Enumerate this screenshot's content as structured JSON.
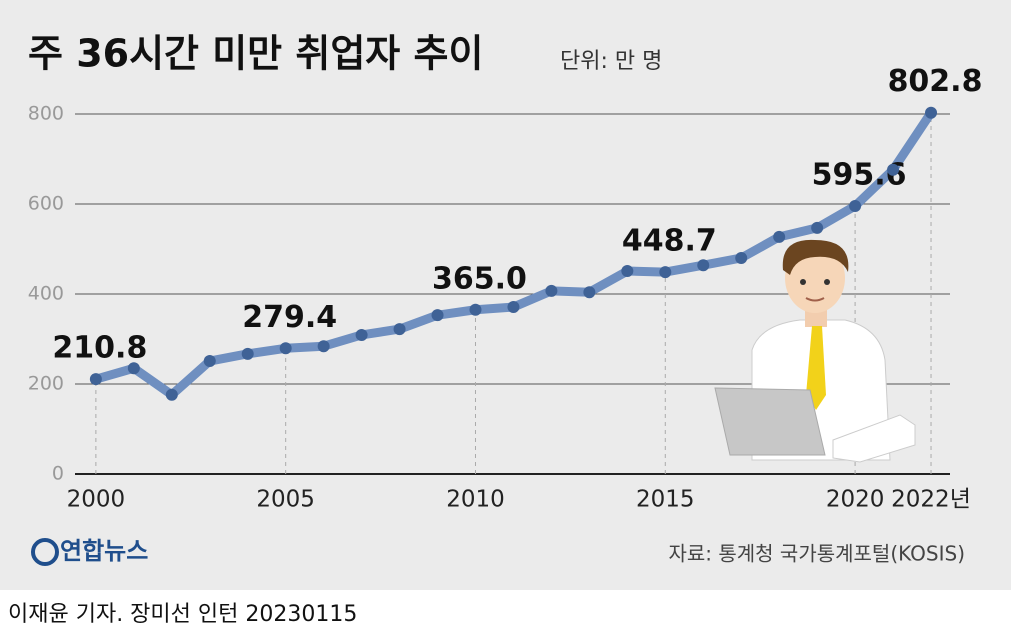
{
  "chart_data": {
    "type": "line",
    "title": "주 36시간 미만 취업자 추이",
    "subtitle": "단위: 만 명",
    "source": "자료: 통계청 국가통계포털(KOSIS)",
    "logo": "연합뉴스",
    "credit": "이재윤 기자. 장미선 인턴  20230115",
    "x": [
      2000,
      2001,
      2002,
      2003,
      2004,
      2005,
      2006,
      2007,
      2008,
      2009,
      2010,
      2011,
      2012,
      2013,
      2014,
      2015,
      2016,
      2017,
      2018,
      2019,
      2020,
      2021,
      2022
    ],
    "values": [
      210.8,
      235,
      176,
      251,
      267,
      279.4,
      284,
      309,
      322,
      353,
      365.0,
      371,
      407,
      404,
      451,
      448.7,
      464,
      480,
      527,
      547,
      595.6,
      676,
      802.8
    ],
    "value_labels": [
      "210.8",
      null,
      null,
      null,
      null,
      "279.4",
      null,
      null,
      null,
      null,
      "365.0",
      null,
      null,
      null,
      null,
      "448.7",
      null,
      null,
      null,
      null,
      "595.6",
      null,
      "802.8"
    ],
    "color": "#6f8fc0",
    "marker_color": "#3f6296",
    "xlim": [
      1999.45,
      2022.5
    ],
    "ylim": [
      0,
      800
    ],
    "xticks": [
      2000,
      2005,
      2010,
      2015,
      2020,
      {
        "value": 2022,
        "label": "2022년"
      }
    ],
    "yticks": [
      0,
      200,
      400,
      600,
      800
    ],
    "grid": true
  }
}
